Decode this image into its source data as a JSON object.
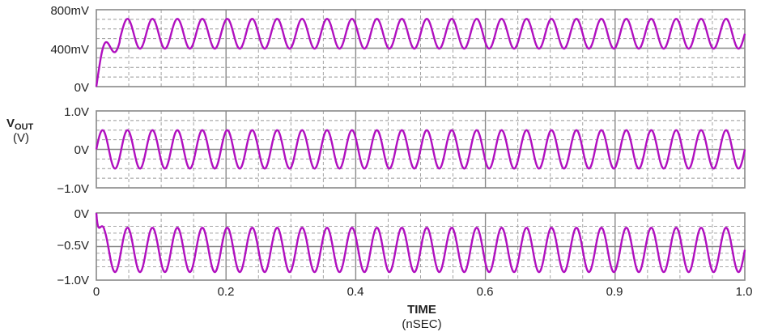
{
  "chart_data": {
    "type": "line",
    "y_axis_label": "V",
    "y_axis_label_subscript": "OUT",
    "y_axis_unit": "(V)",
    "x_axis_label": "TIME",
    "x_axis_unit": "(nSEC)",
    "x_ticks": [
      "0",
      "0.2",
      "0.4",
      "0.6",
      "0.9",
      "1.0"
    ],
    "x_range": [
      0,
      1.0
    ],
    "grid": true,
    "colors": {
      "trace": "#b00fbf",
      "frame": "#888888",
      "grid": "#999999"
    },
    "panels": [
      {
        "y_ticks": [
          "800mV",
          "400mV",
          "0V"
        ],
        "y_range": [
          0,
          0.8
        ],
        "waveform": {
          "offset": 0.55,
          "amplitude": 0.155,
          "cycles": 26,
          "start_value": 0,
          "settle_time": 0.012
        }
      },
      {
        "y_ticks": [
          "1.0V",
          "0V",
          "−1.0V"
        ],
        "y_range": [
          -1.0,
          1.0
        ],
        "waveform": {
          "offset": 0.0,
          "amplitude": 0.5,
          "cycles": 26,
          "start_value": 0,
          "settle_time": 0.0
        }
      },
      {
        "y_ticks": [
          "0V",
          "−0.5V",
          "−1.0V"
        ],
        "y_range": [
          -1.0,
          0.0
        ],
        "waveform": {
          "offset": -0.55,
          "amplitude": 0.33,
          "cycles": 26,
          "start_value": 0,
          "settle_time": 0.004
        }
      }
    ]
  }
}
